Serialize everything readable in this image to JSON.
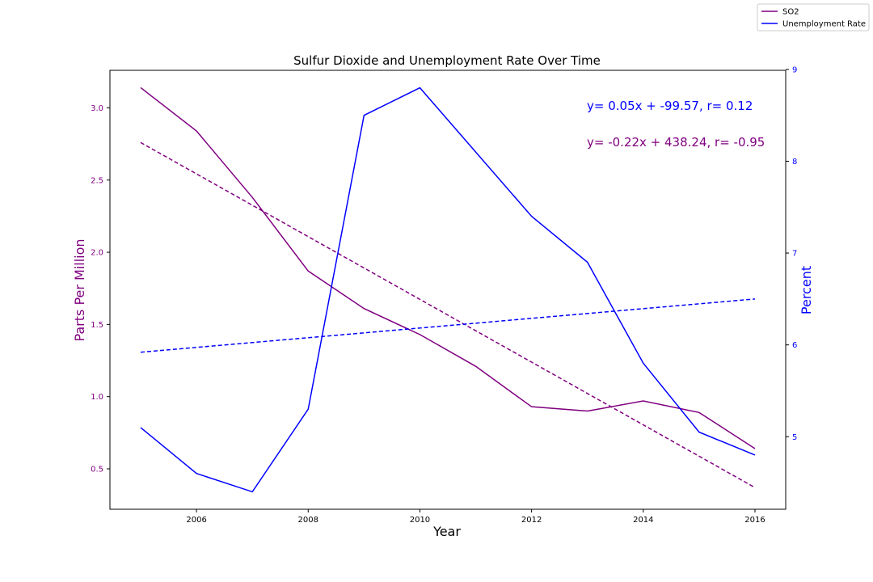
{
  "chart_data": {
    "type": "line",
    "title": "Sulfur Dioxide and Unemployment Rate Over Time",
    "xlabel": "Year",
    "ylabel": "Parts Per Million",
    "y2label": "Percent",
    "x": [
      2005,
      2006,
      2007,
      2008,
      2009,
      2010,
      2011,
      2012,
      2013,
      2014,
      2015,
      2016
    ],
    "xlim": [
      2004.45,
      2016.55
    ],
    "ylim": [
      0.22,
      3.26
    ],
    "y2lim": [
      4.21,
      8.99
    ],
    "xticks": [
      "2006",
      "2008",
      "2010",
      "2012",
      "2014",
      "2016"
    ],
    "yticks": [
      "0.5",
      "1.0",
      "1.5",
      "2.0",
      "2.5",
      "3.0"
    ],
    "y2ticks": [
      "5",
      "6",
      "7",
      "8",
      "9"
    ],
    "grid": false,
    "legend_position": "top-right",
    "series": [
      {
        "name": "SO2",
        "axis": "left",
        "color": "#800080",
        "values": [
          3.14,
          2.84,
          2.38,
          1.87,
          1.61,
          1.43,
          1.21,
          0.93,
          0.9,
          0.97,
          0.89,
          0.64
        ],
        "trend": {
          "color": "#800080",
          "slope": -0.22,
          "intercept": 438.24,
          "start": 2.76,
          "end": 0.37
        }
      },
      {
        "name": "Unemployment Rate",
        "axis": "right",
        "color": "#0000ff",
        "values": [
          5.1,
          4.6,
          4.4,
          5.3,
          8.5,
          8.8,
          8.1,
          7.4,
          6.9,
          5.8,
          5.05,
          4.8
        ],
        "trend": {
          "color": "#0000ff",
          "slope": 0.05,
          "intercept": -99.57,
          "start": 5.92,
          "end": 6.5
        }
      }
    ],
    "annotations": [
      {
        "text": "y= 0.05x + -99.57, r= 0.12",
        "color": "#0000ff"
      },
      {
        "text": "y= -0.22x + 438.24, r= -0.95",
        "color": "#800080"
      }
    ]
  }
}
